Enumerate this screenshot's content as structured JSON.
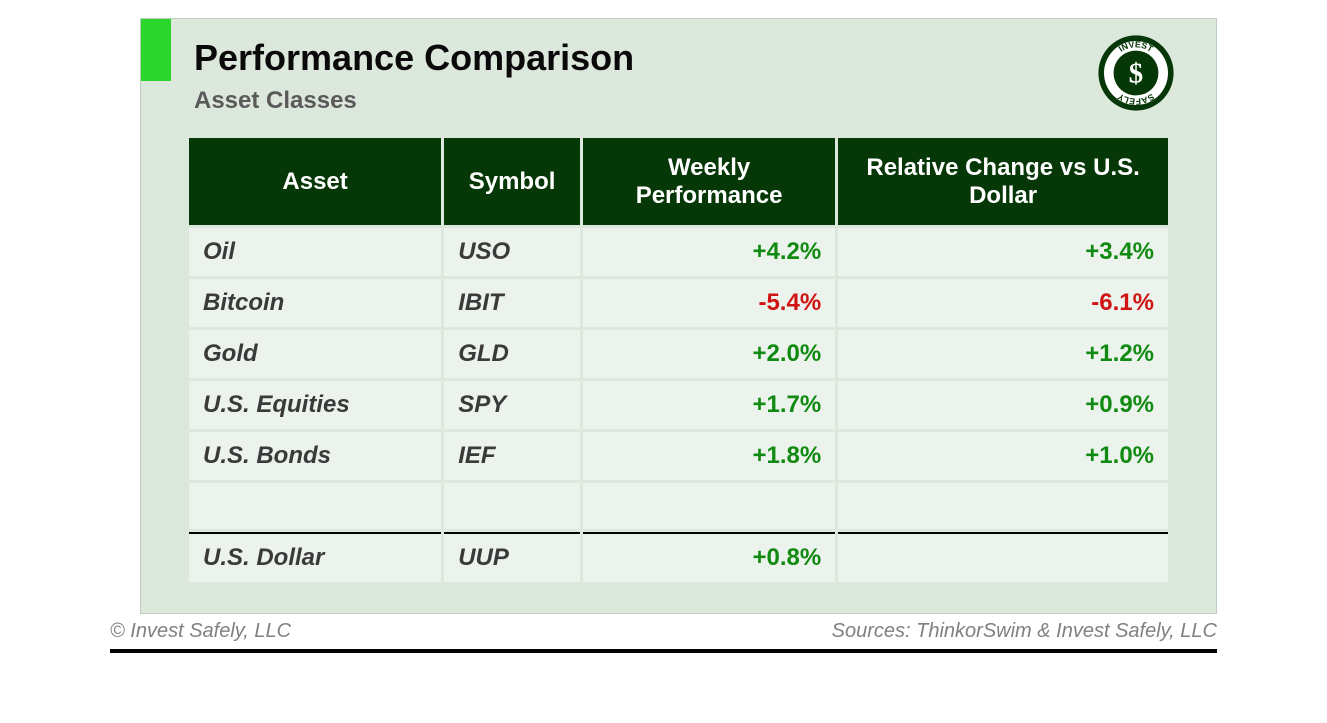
{
  "card": {
    "background_color": "#dde8dd",
    "accent_color": "#2bd52b",
    "title": "Performance Comparison",
    "title_fontsize": 36,
    "subtitle": "Asset Classes",
    "subtitle_fontsize": 24,
    "subtitle_color": "#5a5a5a"
  },
  "logo": {
    "top_text": "INVEST",
    "bottom_text": "SAFELY",
    "stroke_color": "#063706",
    "fill_color": "#ffffff"
  },
  "table": {
    "type": "table",
    "header_bg": "#063706",
    "header_fg": "#ffffff",
    "header_fontsize": 24,
    "cell_bg": "#ecf2ec",
    "cell_fontsize": 24,
    "positive_color": "#118a11",
    "negative_color": "#d01414",
    "separator_before_index": 6,
    "col_widths_pct": [
      26,
      14,
      26,
      34
    ],
    "columns": [
      "Asset",
      "Symbol",
      "Weekly Performance",
      "Relative Change vs U.S. Dollar"
    ],
    "rows": [
      {
        "asset": "Oil",
        "symbol": "USO",
        "weekly": "+4.2%",
        "weekly_dir": "pos",
        "relative": "+3.4%",
        "relative_dir": "pos"
      },
      {
        "asset": "Bitcoin",
        "symbol": "IBIT",
        "weekly": "-5.4%",
        "weekly_dir": "neg",
        "relative": "-6.1%",
        "relative_dir": "neg"
      },
      {
        "asset": "Gold",
        "symbol": "GLD",
        "weekly": "+2.0%",
        "weekly_dir": "pos",
        "relative": "+1.2%",
        "relative_dir": "pos"
      },
      {
        "asset": "U.S. Equities",
        "symbol": "SPY",
        "weekly": "+1.7%",
        "weekly_dir": "pos",
        "relative": "+0.9%",
        "relative_dir": "pos"
      },
      {
        "asset": "U.S. Bonds",
        "symbol": "IEF",
        "weekly": "+1.8%",
        "weekly_dir": "pos",
        "relative": "+1.0%",
        "relative_dir": "pos"
      },
      {
        "asset": "",
        "symbol": "",
        "weekly": "",
        "weekly_dir": "",
        "relative": "",
        "relative_dir": ""
      },
      {
        "asset": "U.S. Dollar",
        "symbol": "UUP",
        "weekly": "+0.8%",
        "weekly_dir": "pos",
        "relative": "",
        "relative_dir": ""
      }
    ]
  },
  "footer": {
    "copyright": "© Invest Safely, LLC",
    "sources": "Sources: ThinkorSwim & Invest Safely, LLC",
    "fontsize": 20,
    "color": "#808080",
    "rule_color": "#000000"
  }
}
